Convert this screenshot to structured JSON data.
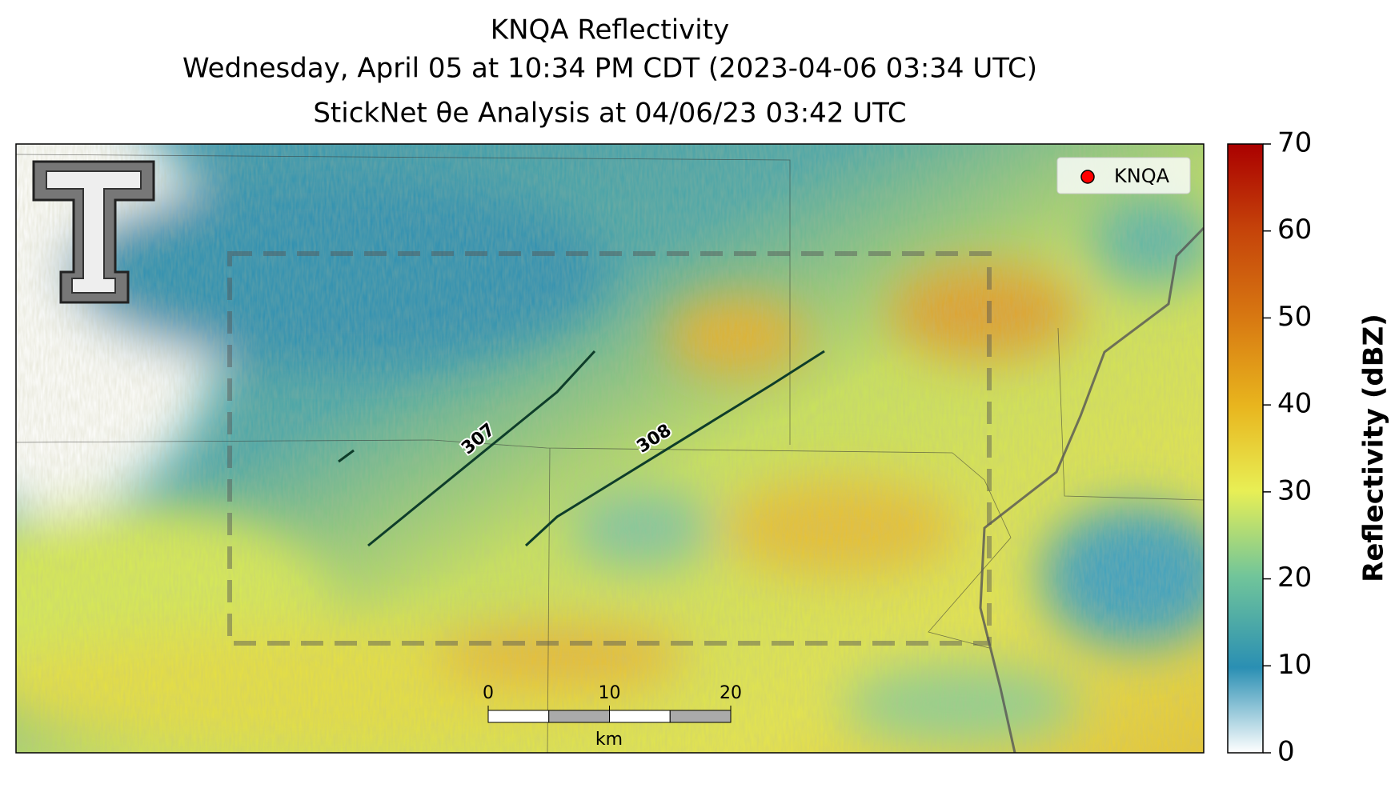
{
  "chart_data": {
    "type": "radar_map",
    "title": "KNQA Reflectivity",
    "subtitle": "Wednesday, April 05 at 10:34 PM CDT (2023-04-06 03:34 UTC)",
    "subtitle2": "StickNet θe Analysis at 04/06/23 03:42 UTC",
    "legend": {
      "label": "KNQA",
      "color": "#ff0000",
      "corner": "upper right"
    },
    "contours": [
      {
        "label": "307"
      },
      {
        "label": "308"
      }
    ],
    "colorbar": {
      "label": "Reflectivity (dBZ)",
      "lim": [
        0,
        70
      ],
      "ticks": [
        0,
        10,
        20,
        30,
        40,
        50,
        60,
        70
      ]
    },
    "scale_bar": {
      "lim": [
        0,
        20
      ],
      "ticks": [
        0,
        10,
        20
      ],
      "unit": "km"
    }
  }
}
